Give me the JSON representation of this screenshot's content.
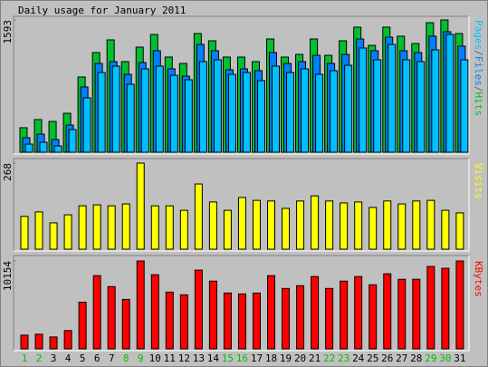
{
  "chart_data": [
    {
      "type": "bar",
      "title": "Daily usage for January 2011",
      "ylim": [
        0,
        1593
      ],
      "yticks": [
        1593
      ],
      "legend_separator": "/",
      "series": [
        {
          "name": "Hits",
          "color": "#00c030",
          "values": [
            295,
            393,
            371,
            469,
            906,
            1200,
            1353,
            1091,
            1266,
            1418,
            1146,
            1069,
            1429,
            1342,
            1146,
            1146,
            1091,
            1364,
            1146,
            1178,
            1364,
            1167,
            1342,
            1506,
            1287,
            1506,
            1397,
            1309,
            1560,
            1593,
            1429
          ]
        },
        {
          "name": "Files",
          "color": "#0080ff",
          "values": [
            175,
            218,
            153,
            327,
            786,
            1069,
            1091,
            938,
            1080,
            1222,
            1004,
            916,
            1298,
            1222,
            993,
            1004,
            982,
            1200,
            1069,
            1091,
            1167,
            1069,
            1178,
            1364,
            1222,
            1386,
            1222,
            1200,
            1397,
            1451,
            1277
          ]
        },
        {
          "name": "Pages",
          "color": "#00c0ff",
          "values": [
            98,
            120,
            76,
            273,
            655,
            960,
            1037,
            818,
            1004,
            1037,
            927,
            873,
            1091,
            1113,
            938,
            960,
            862,
            1037,
            960,
            1004,
            938,
            982,
            1047,
            1255,
            1113,
            1298,
            1113,
            1091,
            1233,
            1418,
            1113
          ]
        }
      ]
    },
    {
      "type": "bar",
      "ylim": [
        0,
        268
      ],
      "yticks": [
        268
      ],
      "series": [
        {
          "name": "Visits",
          "color": "#ffff00",
          "values": [
            102,
            116,
            82,
            107,
            135,
            138,
            135,
            141,
            268,
            135,
            135,
            121,
            203,
            147,
            121,
            161,
            152,
            150,
            127,
            150,
            166,
            150,
            144,
            147,
            130,
            150,
            141,
            150,
            152,
            121,
            113
          ]
        }
      ]
    },
    {
      "type": "bar",
      "ylim": [
        0,
        10154
      ],
      "yticks": [
        10154
      ],
      "categories": [
        "1",
        "2",
        "3",
        "4",
        "5",
        "6",
        "7",
        "8",
        "9",
        "10",
        "11",
        "12",
        "13",
        "14",
        "15",
        "16",
        "17",
        "18",
        "19",
        "20",
        "21",
        "22",
        "23",
        "24",
        "25",
        "26",
        "27",
        "28",
        "29",
        "30",
        "31"
      ],
      "category_colors": [
        "#00c000",
        "#00c000",
        "#000000",
        "#000000",
        "#000000",
        "#000000",
        "#000000",
        "#00c000",
        "#00c000",
        "#000000",
        "#000000",
        "#000000",
        "#000000",
        "#000000",
        "#00c000",
        "#00c000",
        "#000000",
        "#000000",
        "#000000",
        "#000000",
        "#000000",
        "#00c000",
        "#00c000",
        "#000000",
        "#000000",
        "#000000",
        "#000000",
        "#000000",
        "#00c000",
        "#00c000",
        "#000000"
      ],
      "series": [
        {
          "name": "KBytes",
          "color": "#ff0000",
          "values": [
            1587,
            1693,
            1375,
            2115,
            5395,
            8462,
            7193,
            5712,
            10154,
            8568,
            6558,
            6241,
            9097,
            7827,
            6452,
            6346,
            6452,
            8462,
            6981,
            7299,
            8356,
            6981,
            7827,
            8356,
            7404,
            8673,
            8039,
            8039,
            9520,
            9308,
            10154
          ]
        }
      ]
    }
  ]
}
